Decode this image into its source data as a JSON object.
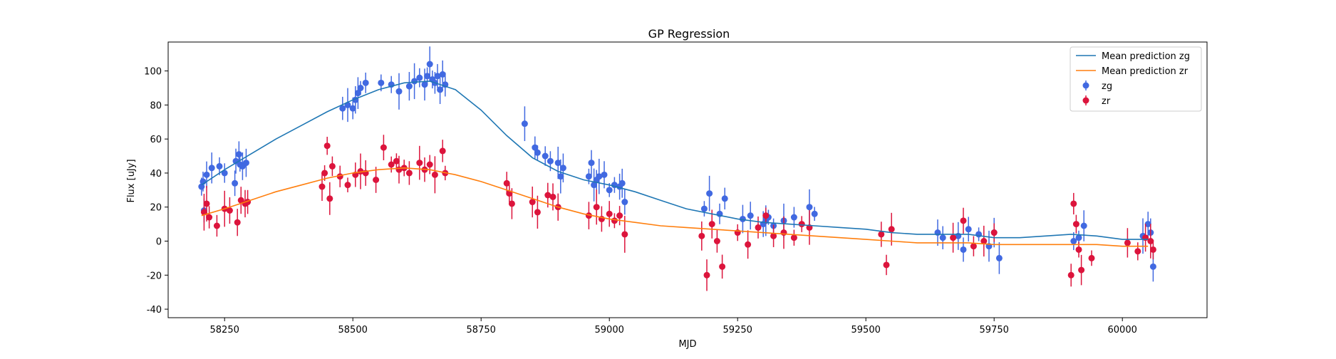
{
  "chart_data": {
    "type": "scatter",
    "title": "GP Regression",
    "xlabel": "MJD",
    "ylabel": "Flux [uJy]",
    "xlim": [
      58140,
      60165
    ],
    "ylim": [
      -45,
      117
    ],
    "xticks": [
      58250,
      58500,
      58750,
      59000,
      59250,
      59500,
      59750,
      60000
    ],
    "yticks": [
      -40,
      -20,
      0,
      20,
      40,
      60,
      80,
      100
    ],
    "grid": false,
    "legend_position": "upper right",
    "legend": [
      {
        "label": "Mean prediction zg",
        "kind": "line",
        "color": "#1f77b4"
      },
      {
        "label": "Mean prediction zr",
        "kind": "line",
        "color": "#ff7f0e"
      },
      {
        "label": "zg",
        "kind": "errorbar",
        "color": "#4169e1"
      },
      {
        "label": "zr",
        "kind": "errorbar",
        "color": "#dc143c"
      }
    ],
    "lines": [
      {
        "name": "Mean prediction zg",
        "color": "#1f77b4",
        "x": [
          58205,
          58250,
          58300,
          58350,
          58400,
          58450,
          58500,
          58550,
          58600,
          58650,
          58700,
          58750,
          58800,
          58850,
          58900,
          58950,
          59000,
          59050,
          59100,
          59150,
          59200,
          59250,
          59300,
          59350,
          59400,
          59450,
          59500,
          59550,
          59600,
          59650,
          59700,
          59750,
          59800,
          59850,
          59900,
          59950,
          60000,
          60050
        ],
        "y": [
          33,
          42,
          51,
          60,
          68,
          76,
          83,
          89,
          93,
          94,
          89,
          77,
          62,
          49,
          41,
          36,
          33,
          29,
          24,
          19,
          16,
          13,
          11,
          10,
          9,
          8,
          7,
          5,
          4,
          4,
          4,
          2,
          2,
          3,
          4,
          3,
          1,
          1
        ]
      },
      {
        "name": "Mean prediction zr",
        "color": "#ff7f0e",
        "x": [
          58205,
          58250,
          58300,
          58350,
          58400,
          58450,
          58500,
          58550,
          58600,
          58650,
          58700,
          58750,
          58800,
          58850,
          58900,
          58950,
          59000,
          59050,
          59100,
          59150,
          59200,
          59250,
          59300,
          59350,
          59400,
          59450,
          59500,
          59550,
          59600,
          59650,
          59700,
          59750,
          59800,
          59850,
          59900,
          59950,
          60000,
          60050
        ],
        "y": [
          15,
          19,
          24,
          29,
          33,
          37,
          40,
          42,
          43,
          42,
          39,
          35,
          30,
          25,
          20,
          16,
          13,
          11,
          9,
          8,
          7,
          6,
          5,
          4,
          3,
          2,
          1,
          0,
          -1,
          -1,
          -1,
          -2,
          -2,
          -2,
          -2,
          -2,
          -3,
          -3
        ]
      }
    ],
    "series": [
      {
        "name": "zg",
        "color": "#4169e1",
        "x": [
          58205,
          58208,
          58210,
          58215,
          58225,
          58240,
          58250,
          58270,
          58272,
          58278,
          58280,
          58285,
          58292,
          58480,
          58490,
          58500,
          58505,
          58510,
          58515,
          58525,
          58555,
          58575,
          58590,
          58610,
          58620,
          58630,
          58640,
          58645,
          58650,
          58655,
          58660,
          58665,
          58670,
          58675,
          58680,
          58835,
          58855,
          58860,
          58875,
          58885,
          58900,
          58905,
          58910,
          58960,
          58965,
          58970,
          58975,
          58980,
          58990,
          59000,
          59010,
          59020,
          59025,
          59030,
          59185,
          59195,
          59215,
          59225,
          59260,
          59275,
          59300,
          59305,
          59310,
          59320,
          59340,
          59360,
          59390,
          59400,
          59640,
          59650,
          59680,
          59690,
          59700,
          59720,
          59740,
          59750,
          59760,
          59905,
          59915,
          59925,
          60040,
          60050,
          60055,
          60060
        ],
        "y": [
          32,
          35,
          18,
          39,
          43,
          44,
          40,
          34,
          47,
          51,
          45,
          44,
          46,
          78,
          80,
          78,
          83,
          87,
          90,
          93,
          93,
          92,
          88,
          91,
          94,
          96,
          92,
          97,
          104,
          95,
          93,
          97,
          89,
          98,
          92,
          69,
          55,
          52,
          50,
          47,
          46,
          38,
          43,
          38,
          46,
          33,
          36,
          38,
          39,
          30,
          33,
          32,
          34,
          23,
          19,
          28,
          16,
          25,
          13,
          15,
          10,
          12,
          14,
          9,
          12,
          14,
          20,
          16,
          5,
          2,
          3,
          -5,
          7,
          4,
          -3,
          5,
          -10,
          0,
          2,
          9,
          3,
          10,
          5,
          -15
        ]
      },
      {
        "name": "zr",
        "color": "#dc143c",
        "x": [
          58210,
          58215,
          58220,
          58235,
          58250,
          58260,
          58275,
          58282,
          58290,
          58295,
          58440,
          58445,
          58450,
          58455,
          58460,
          58475,
          58490,
          58505,
          58515,
          58525,
          58545,
          58560,
          58575,
          58585,
          58590,
          58600,
          58610,
          58630,
          58640,
          58650,
          58660,
          58675,
          58680,
          58800,
          58805,
          58810,
          58850,
          58860,
          58880,
          58890,
          58900,
          58960,
          58975,
          58985,
          59000,
          59010,
          59020,
          59030,
          59180,
          59190,
          59200,
          59210,
          59220,
          59250,
          59270,
          59290,
          59305,
          59320,
          59340,
          59360,
          59375,
          59390,
          59530,
          59540,
          59550,
          59670,
          59690,
          59710,
          59730,
          59750,
          59900,
          59905,
          59910,
          59915,
          59920,
          59940,
          60010,
          60030,
          60045,
          60055,
          60060
        ],
        "y": [
          17,
          22,
          14,
          9,
          19,
          18,
          11,
          24,
          22,
          23,
          32,
          40,
          56,
          25,
          44,
          38,
          33,
          39,
          41,
          40,
          36,
          55,
          45,
          47,
          42,
          43,
          40,
          46,
          42,
          45,
          39,
          53,
          40,
          34,
          28,
          22,
          23,
          17,
          27,
          26,
          20,
          15,
          20,
          13,
          16,
          12,
          15,
          4,
          3,
          -20,
          10,
          0,
          -15,
          5,
          -2,
          8,
          15,
          3,
          5,
          2,
          10,
          8,
          4,
          -14,
          7,
          2,
          12,
          -3,
          0,
          5,
          -20,
          22,
          10,
          -5,
          -17,
          -10,
          -1,
          -6,
          2,
          0,
          -5
        ]
      }
    ]
  }
}
